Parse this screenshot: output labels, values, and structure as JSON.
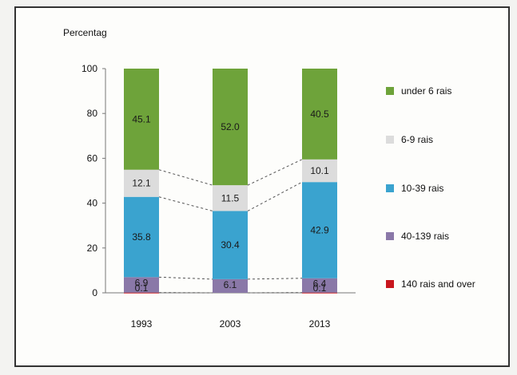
{
  "chart_data": {
    "type": "stacked-bar",
    "ylabel": "Percentag",
    "ylim": [
      0,
      100
    ],
    "yticks": [
      0,
      20,
      40,
      60,
      80,
      100
    ],
    "categories": [
      "1993",
      "2003",
      "2013"
    ],
    "legend_position": "right",
    "series": [
      {
        "name": "140 rais and over",
        "color": "#c8161d",
        "values": [
          0.1,
          0.0,
          0.1
        ],
        "labels": [
          "0.1",
          "",
          "0.1"
        ]
      },
      {
        "name": "40-139 rais",
        "color": "#8a78a8",
        "values": [
          6.9,
          6.1,
          6.4
        ],
        "labels": [
          "6.9",
          "6.1",
          "6.4"
        ]
      },
      {
        "name": "10-39 rais",
        "color": "#3aa3cf",
        "values": [
          35.8,
          30.4,
          42.9
        ],
        "labels": [
          "35.8",
          "30.4",
          "42.9"
        ]
      },
      {
        "name": "6-9 rais",
        "color": "#dcdcdc",
        "values": [
          12.1,
          11.5,
          10.1
        ],
        "labels": [
          "12.1",
          "11.5",
          "10.1"
        ]
      },
      {
        "name": "under 6 rais",
        "color": "#6ea33a",
        "values": [
          45.1,
          52.0,
          40.5
        ],
        "labels": [
          "45.1",
          "52.0",
          "40.5"
        ]
      }
    ]
  }
}
